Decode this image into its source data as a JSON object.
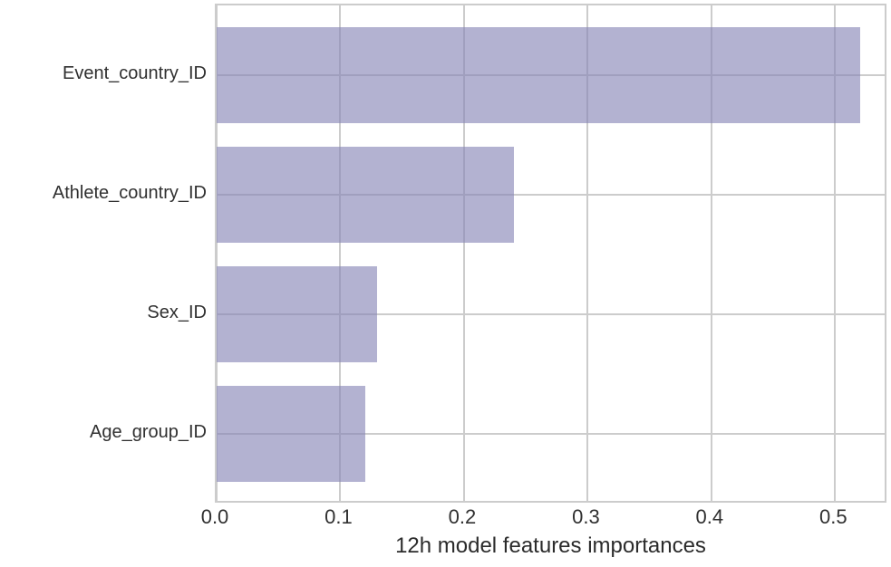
{
  "chart_data": {
    "type": "bar",
    "orientation": "horizontal",
    "title": "",
    "xlabel": "12h model features importances",
    "ylabel": "",
    "categories": [
      "Event_country_ID",
      "Athlete_country_ID",
      "Sex_ID",
      "Age_group_ID"
    ],
    "values": [
      0.52,
      0.24,
      0.13,
      0.12
    ],
    "xlim": [
      0.0,
      0.543
    ],
    "xticks": [
      0.0,
      0.1,
      0.2,
      0.3,
      0.4,
      0.5
    ],
    "xtick_labels": [
      "0.0",
      "0.1",
      "0.2",
      "0.3",
      "0.4",
      "0.5"
    ],
    "grid": true,
    "legend": null,
    "colors": {
      "bar_fill": "133,130,180",
      "bar_alpha": 0.62,
      "gridline": "#cccccc",
      "spine": "#cccccc",
      "tick_text": "#303030",
      "label_text": "#2b2b2b"
    }
  }
}
